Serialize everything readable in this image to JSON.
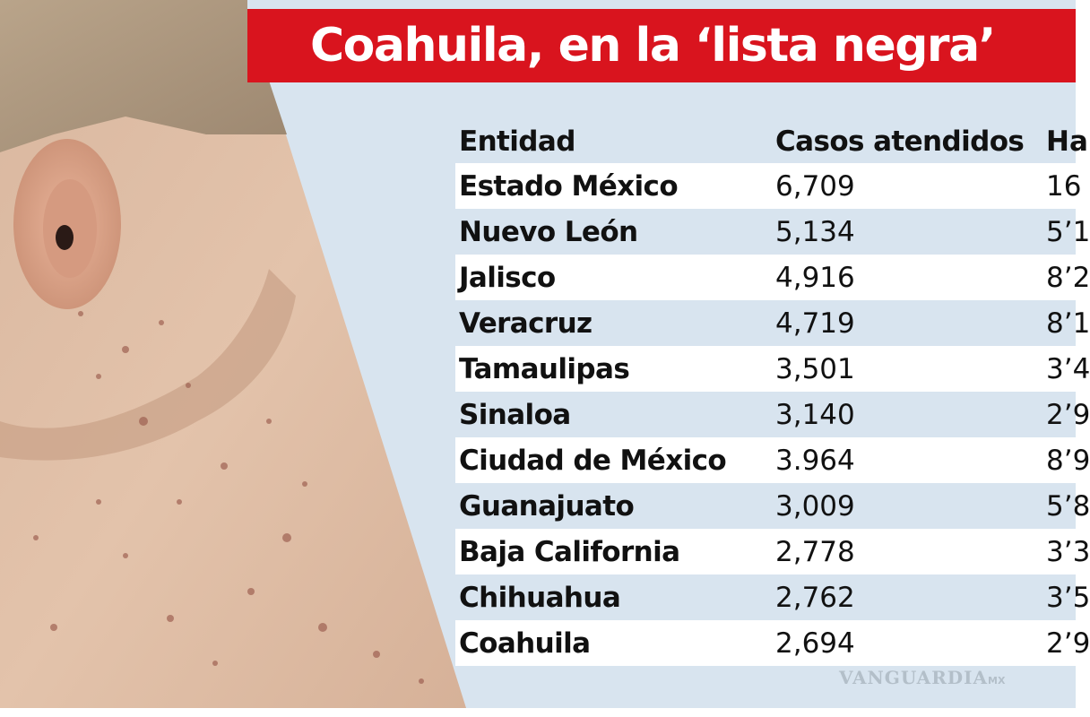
{
  "title": "Coahuila, en la ‘lista negra’",
  "table": {
    "headers": {
      "entidad": "Entidad",
      "casos": "Casos atendidos",
      "habitantes": "Ha"
    },
    "rows": [
      {
        "entidad": "Estado México",
        "casos": "6,709",
        "habitantes": "16"
      },
      {
        "entidad": "Nuevo León",
        "casos": "5,134",
        "habitantes": "5’1"
      },
      {
        "entidad": "Jalisco",
        "casos": "4,916",
        "habitantes": "8’2"
      },
      {
        "entidad": "Veracruz",
        "casos": "4,719",
        "habitantes": "8’1"
      },
      {
        "entidad": "Tamaulipas",
        "casos": "3,501",
        "habitantes": "3’4"
      },
      {
        "entidad": "Sinaloa",
        "casos": "3,140",
        "habitantes": "2’9"
      },
      {
        "entidad": "Ciudad de México",
        "casos": "3.964",
        "habitantes": "8’9"
      },
      {
        "entidad": "Guanajuato",
        "casos": "3,009",
        "habitantes": "5’8"
      },
      {
        "entidad": "Baja California",
        "casos": "2,778",
        "habitantes": "3’3"
      },
      {
        "entidad": "Chihuahua",
        "casos": "2,762",
        "habitantes": "3’5"
      },
      {
        "entidad": "Coahuila",
        "casos": "2,694",
        "habitantes": "2’9"
      }
    ]
  },
  "watermark": {
    "brand": "VANGUARDIA",
    "suffix": "MX"
  },
  "colors": {
    "title_bg": "#d9141e",
    "panel_bg": "#d8e4ef",
    "row_alt": "#ffffff"
  }
}
